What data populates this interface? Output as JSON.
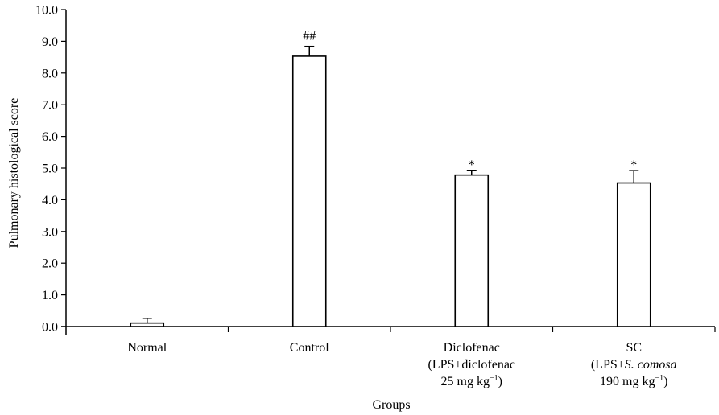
{
  "chart_data": {
    "type": "bar",
    "ylabel": "Pulmonary histological score",
    "xlabel": "Groups",
    "ylim": [
      0,
      10
    ],
    "yticks": [
      "0.0",
      "1.0",
      "2.0",
      "3.0",
      "4.0",
      "5.0",
      "6.0",
      "7.0",
      "8.0",
      "9.0",
      "10.0"
    ],
    "grid": false,
    "categories": [
      {
        "lines": [
          [
            {
              "t": "Normal"
            }
          ]
        ]
      },
      {
        "lines": [
          [
            {
              "t": "Control"
            }
          ]
        ]
      },
      {
        "lines": [
          [
            {
              "t": "Diclofenac"
            }
          ],
          [
            {
              "t": "(LPS+diclofenac"
            }
          ],
          [
            {
              "t": "25 mg kg"
            },
            {
              "t": "−1",
              "sup": true
            },
            {
              "t": ")"
            }
          ]
        ]
      },
      {
        "lines": [
          [
            {
              "t": "SC"
            }
          ],
          [
            {
              "t": "(LPS+"
            },
            {
              "t": "S. comosa",
              "italic": true
            }
          ],
          [
            {
              "t": "190 mg kg"
            },
            {
              "t": "−1",
              "sup": true
            },
            {
              "t": ")"
            }
          ]
        ]
      }
    ],
    "values": [
      0.11,
      8.53,
      4.78,
      4.53
    ],
    "error_upper": [
      0.26,
      8.84,
      4.93,
      4.92
    ],
    "annotations": [
      "",
      "##",
      "*",
      "*"
    ],
    "bar_fill": "#ffffff",
    "bar_stroke": "#000000"
  }
}
